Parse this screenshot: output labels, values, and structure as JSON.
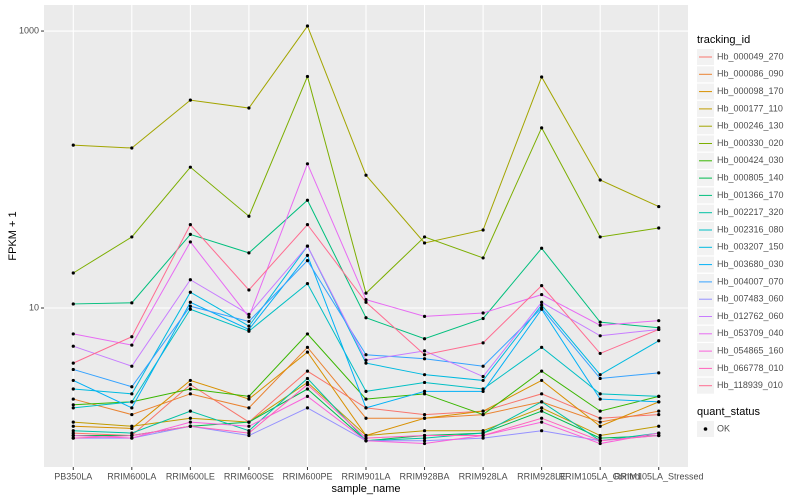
{
  "chart_data": {
    "type": "line",
    "log_y": true,
    "grid": true,
    "x_label": "sample_name",
    "y_label": "FPKM + 1",
    "categories": [
      "PB350LA",
      "RRIM600LA",
      "RRIM600LE",
      "RRIM600SE",
      "RRIM600PE",
      "RRIM901LA",
      "RRIM928BA",
      "RRIM928LA",
      "RRIM928LE",
      "RRIM105LA_Control",
      "RRIM105LA_Stressed"
    ],
    "ylim": [
      0.711,
      1542
    ],
    "yticks": [
      10,
      1000
    ],
    "legend_title": "tracking_id",
    "series": [
      {
        "name": "Hb_000049_270",
        "color": "#F8766D",
        "values": [
          1.25,
          1.2,
          2.8,
          1.5,
          3.5,
          1.9,
          1.7,
          1.8,
          2.4,
          1.6,
          1.7
        ]
      },
      {
        "name": "Hb_000086_090",
        "color": "#EA8331",
        "values": [
          2.2,
          1.7,
          2.4,
          1.9,
          5.2,
          1.6,
          1.6,
          1.7,
          2.1,
          1.5,
          1.8
        ]
      },
      {
        "name": "Hb_000098_170",
        "color": "#D89000",
        "values": [
          1.4,
          1.35,
          3.0,
          2.2,
          4.8,
          1.2,
          1.6,
          1.8,
          3.0,
          1.4,
          2.1
        ]
      },
      {
        "name": "Hb_000177_110",
        "color": "#C09B00",
        "values": [
          1.5,
          1.4,
          1.6,
          1.5,
          2.9,
          1.2,
          1.3,
          1.3,
          1.9,
          1.2,
          1.4
        ]
      },
      {
        "name": "Hb_000246_130",
        "color": "#A3A500",
        "values": [
          150,
          143,
          317,
          278,
          1087,
          91,
          29.5,
          36.6,
          466,
          84,
          54
        ]
      },
      {
        "name": "Hb_000330_020",
        "color": "#7CAE00",
        "values": [
          17.9,
          32.6,
          104,
          46,
          470,
          12.8,
          32.6,
          23,
          200,
          32.6,
          37.8
        ]
      },
      {
        "name": "Hb_000424_030",
        "color": "#39B600",
        "values": [
          2.0,
          2.1,
          2.6,
          2.3,
          6.5,
          2.2,
          2.4,
          1.7,
          3.5,
          1.8,
          2.3
        ]
      },
      {
        "name": "Hb_000805_140",
        "color": "#00BB4E",
        "values": [
          1.2,
          1.2,
          1.4,
          1.5,
          2.6,
          1.1,
          1.2,
          1.25,
          1.8,
          1.15,
          1.2
        ]
      },
      {
        "name": "Hb_001366_170",
        "color": "#00BF7D",
        "values": [
          10.7,
          10.9,
          34,
          25,
          60,
          8.5,
          6.0,
          8.4,
          27,
          7.9,
          7.2
        ]
      },
      {
        "name": "Hb_002217_320",
        "color": "#00C1A3",
        "values": [
          1.3,
          1.25,
          1.8,
          1.3,
          3.1,
          1.1,
          1.15,
          1.25,
          2.1,
          1.1,
          1.25
        ]
      },
      {
        "name": "Hb_002316_080",
        "color": "#00BFC4",
        "values": [
          1.9,
          2.1,
          9.8,
          6.8,
          15,
          2.5,
          2.9,
          2.6,
          5.2,
          2.4,
          2.3
        ]
      },
      {
        "name": "Hb_003207_150",
        "color": "#00BAE0",
        "values": [
          2.6,
          2.4,
          13,
          7.4,
          28,
          4.0,
          3.3,
          3.0,
          10.5,
          3.3,
          5.8
        ]
      },
      {
        "name": "Hb_003680_030",
        "color": "#00B0F6",
        "values": [
          3.0,
          1.9,
          11,
          7.0,
          24,
          1.9,
          2.5,
          2.5,
          9.8,
          2.2,
          2.1
        ]
      },
      {
        "name": "Hb_004007_070",
        "color": "#35A2FF",
        "values": [
          3.6,
          2.7,
          10.3,
          8.0,
          22,
          4.6,
          4.3,
          3.8,
          10.0,
          3.1,
          3.4
        ]
      },
      {
        "name": "Hb_007483_060",
        "color": "#9590FF",
        "values": [
          1.15,
          1.15,
          1.4,
          1.2,
          1.9,
          1.1,
          1.1,
          1.15,
          1.3,
          1.1,
          1.2
        ]
      },
      {
        "name": "Hb_012762_060",
        "color": "#C77CFF",
        "values": [
          5.3,
          3.8,
          16,
          9.0,
          28,
          4.2,
          4.9,
          3.2,
          11,
          6.3,
          7.0
        ]
      },
      {
        "name": "Hb_053709_040",
        "color": "#E76BF3",
        "values": [
          6.5,
          5.4,
          30,
          8.6,
          110,
          11.5,
          8.7,
          9.2,
          12.5,
          7.5,
          8.1
        ]
      },
      {
        "name": "Hb_054865_160",
        "color": "#FA62DB",
        "values": [
          1.2,
          1.15,
          1.5,
          1.4,
          2.3,
          1.1,
          1.05,
          1.2,
          1.5,
          1.05,
          1.25
        ]
      },
      {
        "name": "Hb_066778_010",
        "color": "#FF62BC",
        "values": [
          1.15,
          1.2,
          1.4,
          1.25,
          2.8,
          1.15,
          1.2,
          1.2,
          1.6,
          1.1,
          1.2
        ]
      },
      {
        "name": "Hb_118939_010",
        "color": "#FF6C91",
        "values": [
          4.0,
          6.2,
          40,
          13.5,
          40,
          11.0,
          4.6,
          5.6,
          14.5,
          4.7,
          7.0
        ]
      }
    ],
    "shape_legend": {
      "title": "quant_status",
      "labels": [
        "OK"
      ],
      "color": "#000000"
    }
  }
}
